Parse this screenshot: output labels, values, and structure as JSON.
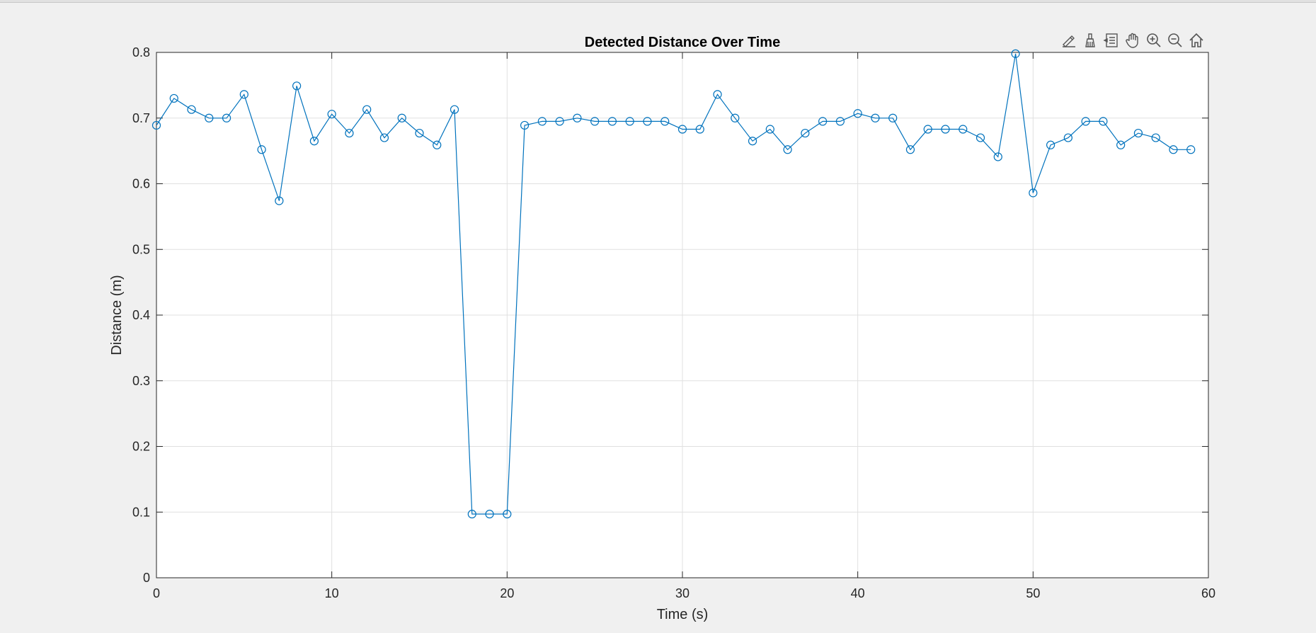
{
  "window": {
    "background": "#f0f0f0"
  },
  "toolbar": {
    "items": [
      {
        "name": "brush-edit-icon"
      },
      {
        "name": "data-brush-icon"
      },
      {
        "name": "data-tips-icon"
      },
      {
        "name": "pan-hand-icon"
      },
      {
        "name": "zoom-in-icon"
      },
      {
        "name": "zoom-out-icon"
      },
      {
        "name": "home-icon"
      }
    ]
  },
  "chart_data": {
    "type": "line",
    "title": "Detected Distance Over Time",
    "xlabel": "Time (s)",
    "ylabel": "Distance (m)",
    "xlim": [
      0,
      60
    ],
    "ylim": [
      0,
      0.8
    ],
    "xticks": [
      "0",
      "10",
      "20",
      "30",
      "40",
      "50",
      "60"
    ],
    "yticks": [
      "0",
      "0.1",
      "0.2",
      "0.3",
      "0.4",
      "0.5",
      "0.6",
      "0.7",
      "0.8"
    ],
    "grid": true,
    "marker": "circle",
    "color": "#0072bd",
    "series": [
      {
        "x": [
          0,
          1,
          2,
          3,
          4,
          5,
          6,
          7,
          8,
          9,
          10,
          11,
          12,
          13,
          14,
          15,
          16,
          17,
          18,
          19,
          20,
          21,
          22,
          23,
          24,
          25,
          26,
          27,
          28,
          29,
          30,
          31,
          32,
          33,
          34,
          35,
          36,
          37,
          38,
          39,
          40,
          41,
          42,
          43,
          44,
          45,
          46,
          47,
          48,
          49,
          50,
          51,
          52,
          53,
          54,
          55,
          56,
          57,
          58,
          59
        ],
        "values": [
          0.689,
          0.73,
          0.713,
          0.7,
          0.7,
          0.736,
          0.652,
          0.574,
          0.749,
          0.665,
          0.706,
          0.677,
          0.713,
          0.67,
          0.7,
          0.677,
          0.659,
          0.713,
          0.097,
          0.097,
          0.097,
          0.689,
          0.695,
          0.695,
          0.7,
          0.695,
          0.695,
          0.695,
          0.695,
          0.695,
          0.683,
          0.683,
          0.736,
          0.7,
          0.665,
          0.683,
          0.652,
          0.677,
          0.695,
          0.695,
          0.707,
          0.7,
          0.7,
          0.652,
          0.683,
          0.683,
          0.683,
          0.67,
          0.641,
          0.798,
          0.586,
          0.659,
          0.67,
          0.695,
          0.695,
          0.659,
          0.677,
          0.67,
          0.652,
          0.652
        ]
      }
    ]
  }
}
